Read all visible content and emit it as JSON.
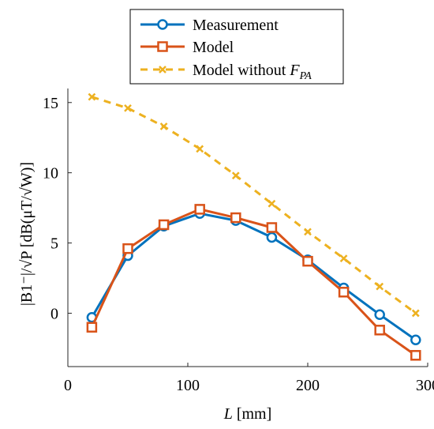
{
  "chart_data": {
    "type": "line",
    "x": [
      20,
      50,
      80,
      110,
      140,
      170,
      200,
      230,
      260,
      290
    ],
    "series": [
      {
        "name": "Measurement",
        "color": "#0072BD",
        "marker": "circle",
        "line": "solid",
        "values": [
          -0.3,
          4.1,
          6.2,
          7.1,
          6.6,
          5.4,
          3.8,
          1.8,
          -0.1,
          -1.9
        ]
      },
      {
        "name": "Model",
        "color": "#D95319",
        "marker": "square",
        "line": "solid",
        "values": [
          -1.0,
          4.6,
          6.3,
          7.4,
          6.8,
          6.1,
          3.7,
          1.5,
          -1.2,
          -3.0
        ]
      },
      {
        "name": "Model without F_PA",
        "color": "#EDB120",
        "marker": "x",
        "line": "dashed",
        "values": [
          15.4,
          14.6,
          13.3,
          11.7,
          9.8,
          7.8,
          5.8,
          3.9,
          1.9,
          0.0
        ]
      }
    ],
    "xlim": [
      0,
      300
    ],
    "ylim": [
      -3.8,
      16
    ],
    "xticks": [
      0,
      100,
      200,
      300
    ],
    "yticks": [
      0,
      5,
      10,
      15
    ],
    "xlabel": "L [mm]",
    "ylabel": "|B1⁻|/√P [dB(μT/√W)]",
    "legend": {
      "position": "top",
      "labels": [
        "Measurement",
        "Model",
        "Model without F_PA"
      ]
    },
    "grid": false
  }
}
